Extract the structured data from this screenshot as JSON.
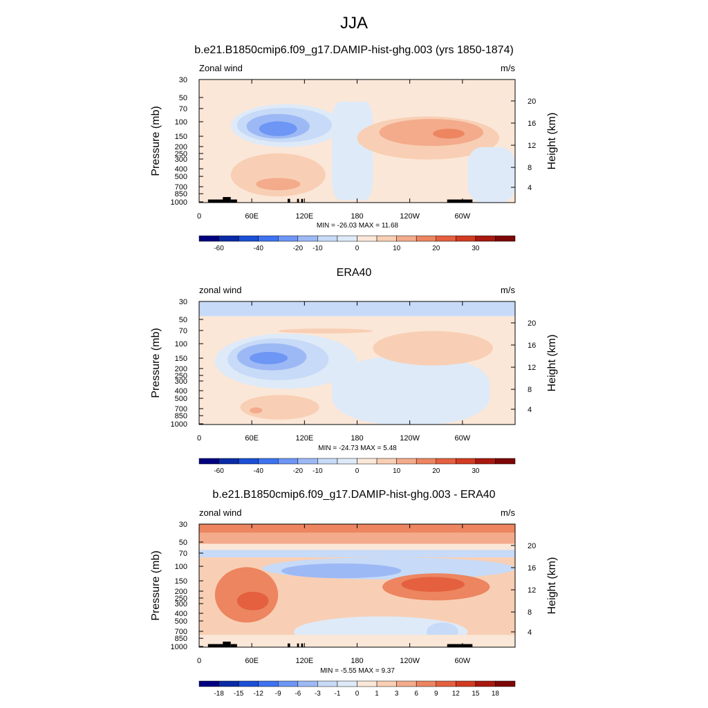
{
  "page": {
    "title": "JJA"
  },
  "chart_data": [
    {
      "type": "heatmap",
      "title": "b.e21.B1850cmip6.f09_g17.DAMIP-hist-ghg.003 (yrs 1850-1874)",
      "left_label": "Zonal wind",
      "right_label": "m/s",
      "ylabel": "Pressure (mb)",
      "ylabel_right": "Height (km)",
      "xticks": [
        "0",
        "60E",
        "120E",
        "180",
        "120W",
        "60W"
      ],
      "yticks": [
        "30",
        "50",
        "70",
        "100",
        "150",
        "200",
        "250",
        "300",
        "400",
        "500",
        "700",
        "850",
        "1000"
      ],
      "yticks_right": [
        "20",
        "16",
        "12",
        "8",
        "4"
      ],
      "min": -26.03,
      "max": 11.68,
      "minmax_text": "MIN = -26.03  MAX =  11.68",
      "colorbar_ticks": [
        "-60",
        "-40",
        "-20",
        "-10",
        "0",
        "10",
        "20",
        "30"
      ],
      "topography": true
    },
    {
      "type": "heatmap",
      "title": "ERA40",
      "left_label": "zonal wind",
      "right_label": "m/s",
      "ylabel": "Pressure (mb)",
      "ylabel_right": "Height (km)",
      "xticks": [
        "0",
        "60E",
        "120E",
        "180",
        "120W",
        "60W"
      ],
      "yticks": [
        "30",
        "50",
        "70",
        "100",
        "150",
        "200",
        "250",
        "300",
        "400",
        "500",
        "700",
        "850",
        "1000"
      ],
      "yticks_right": [
        "20",
        "16",
        "12",
        "8",
        "4"
      ],
      "min": -24.73,
      "max": 5.48,
      "minmax_text": "MIN = -24.73  MAX =   5.48",
      "colorbar_ticks": [
        "-60",
        "-40",
        "-20",
        "-10",
        "0",
        "10",
        "20",
        "30"
      ],
      "topography": false
    },
    {
      "type": "heatmap",
      "title": "b.e21.B1850cmip6.f09_g17.DAMIP-hist-ghg.003 - ERA40",
      "left_label": "zonal wind",
      "right_label": "m/s",
      "ylabel": "Pressure (mb)",
      "ylabel_right": "Height (km)",
      "xticks": [
        "0",
        "60E",
        "120E",
        "180",
        "120W",
        "60W"
      ],
      "yticks": [
        "30",
        "50",
        "70",
        "100",
        "150",
        "200",
        "250",
        "300",
        "400",
        "500",
        "700",
        "850",
        "1000"
      ],
      "yticks_right": [
        "20",
        "16",
        "12",
        "8",
        "4"
      ],
      "min": -5.55,
      "max": 9.37,
      "minmax_text": "MIN =  -5.55  MAX =   9.37",
      "colorbar_ticks": [
        "-18",
        "-15",
        "-12",
        "-9",
        "-6",
        "-3",
        "-1",
        "0",
        "1",
        "3",
        "6",
        "9",
        "12",
        "15",
        "18"
      ],
      "topography": true
    }
  ],
  "colors": {
    "palette": [
      "#00007f",
      "#0a2aa6",
      "#1a4fd6",
      "#3d72f0",
      "#6d96f5",
      "#9db9f5",
      "#c7daf7",
      "#deeaf8",
      "#fbe7d8",
      "#f8cfb4",
      "#f3ab8c",
      "#ec8560",
      "#e4603f",
      "#d13b22",
      "#a8180f",
      "#7d0606"
    ]
  }
}
